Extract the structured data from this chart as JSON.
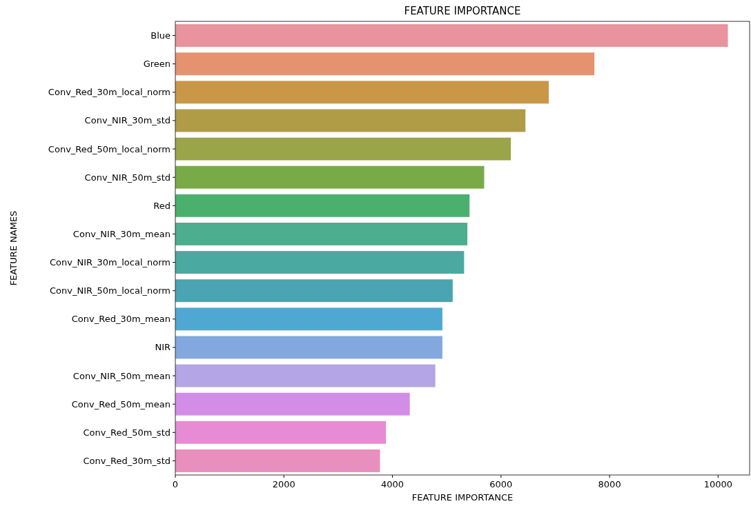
{
  "chart_data": {
    "type": "bar",
    "orientation": "horizontal",
    "title": "FEATURE IMPORTANCE",
    "xlabel": "FEATURE IMPORTANCE",
    "ylabel": "FEATURE NAMES",
    "categories": [
      "Blue",
      "Green",
      "Conv_Red_30m_local_norm",
      "Conv_NIR_30m_std",
      "Conv_Red_50m_local_norm",
      "Conv_NIR_50m_std",
      "Red",
      "Conv_NIR_30m_mean",
      "Conv_NIR_30m_local_norm",
      "Conv_NIR_50m_local_norm",
      "Conv_Red_30m_mean",
      "NIR",
      "Conv_NIR_50m_mean",
      "Conv_Red_50m_mean",
      "Conv_Red_50m_std",
      "Conv_Red_30m_std"
    ],
    "values": [
      10180,
      7720,
      6880,
      6450,
      6180,
      5690,
      5420,
      5380,
      5320,
      5110,
      4920,
      4920,
      4790,
      4320,
      3880,
      3770
    ],
    "colors": [
      "#e8939e",
      "#e6926e",
      "#c99846",
      "#b09b47",
      "#9aa448",
      "#78ab48",
      "#4bb06d",
      "#4cae8f",
      "#4aa9a0",
      "#4aa4b2",
      "#4fa8d2",
      "#83a8e0",
      "#b3a5e6",
      "#d28ee6",
      "#e68bd4",
      "#e88fbd"
    ],
    "xlim": [
      0,
      10580
    ],
    "xticks": [
      0,
      2000,
      4000,
      6000,
      8000,
      10000
    ],
    "grid": false
  }
}
